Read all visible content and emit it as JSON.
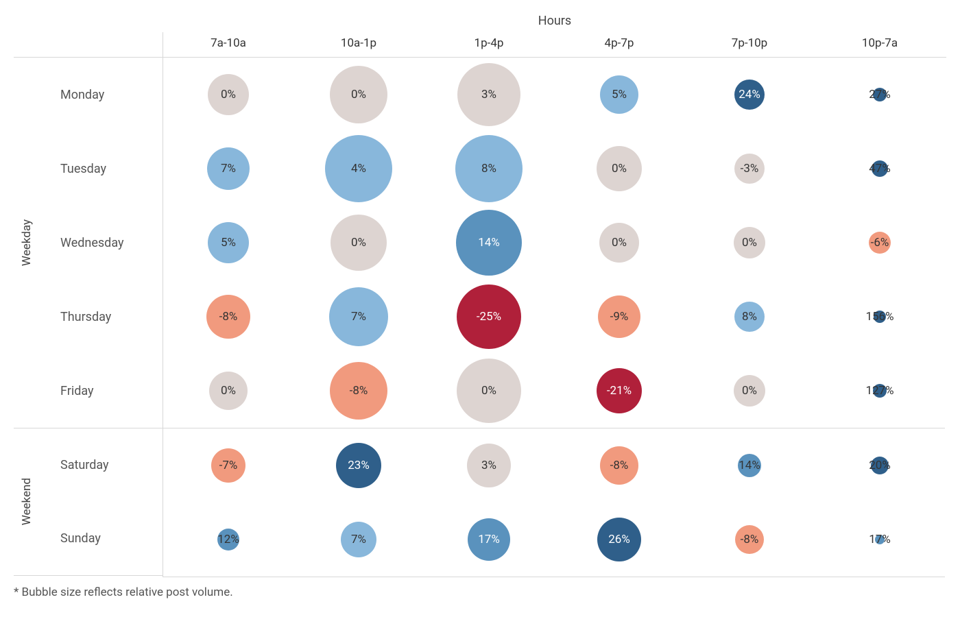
{
  "chart": {
    "type": "bubble-matrix",
    "top_axis_title": "Hours",
    "columns": [
      "7a-10a",
      "10a-1p",
      "1p-4p",
      "4p-7p",
      "7p-10p",
      "10p-7a"
    ],
    "row_groups": [
      {
        "label": "Weekday",
        "rows": [
          "Monday",
          "Tuesday",
          "Wednesday",
          "Thursday",
          "Friday"
        ]
      },
      {
        "label": "Weekend",
        "rows": [
          "Saturday",
          "Sunday"
        ]
      }
    ],
    "colors": {
      "neutral": "#ddd4d1",
      "light_blue": "#88b7db",
      "mid_blue": "#5a92bd",
      "dark_blue": "#2f5f8a",
      "light_red": "#f19a7e",
      "dark_red": "#b0203a",
      "text_dark": "#333333",
      "text_light": "#ffffff",
      "grid_line": "#d7d7d7",
      "background": "#ffffff"
    },
    "cell_size": {
      "width": 190,
      "height": 108
    },
    "label_fontsize": 17,
    "data": {
      "Monday": [
        {
          "value": "0%",
          "size": 60,
          "fill": "neutral",
          "text": "dark"
        },
        {
          "value": "0%",
          "size": 84,
          "fill": "neutral",
          "text": "dark"
        },
        {
          "value": "3%",
          "size": 92,
          "fill": "neutral",
          "text": "dark"
        },
        {
          "value": "5%",
          "size": 56,
          "fill": "light_blue",
          "text": "dark"
        },
        {
          "value": "24%",
          "size": 44,
          "fill": "dark_blue",
          "text": "light"
        },
        {
          "value": "27%",
          "size": 20,
          "fill": "dark_blue",
          "text": "dark",
          "label_outside": true
        }
      ],
      "Tuesday": [
        {
          "value": "7%",
          "size": 62,
          "fill": "light_blue",
          "text": "dark"
        },
        {
          "value": "4%",
          "size": 98,
          "fill": "light_blue",
          "text": "dark"
        },
        {
          "value": "8%",
          "size": 98,
          "fill": "light_blue",
          "text": "dark"
        },
        {
          "value": "0%",
          "size": 66,
          "fill": "neutral",
          "text": "dark"
        },
        {
          "value": "-3%",
          "size": 44,
          "fill": "neutral",
          "text": "dark"
        },
        {
          "value": "47%",
          "size": 24,
          "fill": "dark_blue",
          "text": "dark",
          "label_outside": true
        }
      ],
      "Wednesday": [
        {
          "value": "5%",
          "size": 60,
          "fill": "light_blue",
          "text": "dark"
        },
        {
          "value": "0%",
          "size": 82,
          "fill": "neutral",
          "text": "dark"
        },
        {
          "value": "14%",
          "size": 96,
          "fill": "mid_blue",
          "text": "light"
        },
        {
          "value": "0%",
          "size": 58,
          "fill": "neutral",
          "text": "dark"
        },
        {
          "value": "0%",
          "size": 46,
          "fill": "neutral",
          "text": "dark"
        },
        {
          "value": "-6%",
          "size": 32,
          "fill": "light_red",
          "text": "dark",
          "label_outside": true
        }
      ],
      "Thursday": [
        {
          "value": "-8%",
          "size": 64,
          "fill": "light_red",
          "text": "dark"
        },
        {
          "value": "7%",
          "size": 86,
          "fill": "light_blue",
          "text": "dark"
        },
        {
          "value": "-25%",
          "size": 94,
          "fill": "dark_red",
          "text": "light"
        },
        {
          "value": "-9%",
          "size": 62,
          "fill": "light_red",
          "text": "dark"
        },
        {
          "value": "8%",
          "size": 44,
          "fill": "light_blue",
          "text": "dark"
        },
        {
          "value": "156%",
          "size": 18,
          "fill": "dark_blue",
          "text": "dark",
          "label_outside": true
        }
      ],
      "Friday": [
        {
          "value": "0%",
          "size": 56,
          "fill": "neutral",
          "text": "dark"
        },
        {
          "value": "-8%",
          "size": 84,
          "fill": "light_red",
          "text": "dark"
        },
        {
          "value": "0%",
          "size": 94,
          "fill": "neutral",
          "text": "dark"
        },
        {
          "value": "-21%",
          "size": 66,
          "fill": "dark_red",
          "text": "light"
        },
        {
          "value": "0%",
          "size": 46,
          "fill": "neutral",
          "text": "dark"
        },
        {
          "value": "127%",
          "size": 20,
          "fill": "dark_blue",
          "text": "dark",
          "label_outside": true
        }
      ],
      "Saturday": [
        {
          "value": "-7%",
          "size": 50,
          "fill": "light_red",
          "text": "dark"
        },
        {
          "value": "23%",
          "size": 66,
          "fill": "dark_blue",
          "text": "light"
        },
        {
          "value": "3%",
          "size": 64,
          "fill": "neutral",
          "text": "dark"
        },
        {
          "value": "-8%",
          "size": 56,
          "fill": "light_red",
          "text": "dark"
        },
        {
          "value": "14%",
          "size": 34,
          "fill": "mid_blue",
          "text": "dark",
          "label_outside": true
        },
        {
          "value": "20%",
          "size": 26,
          "fill": "dark_blue",
          "text": "dark",
          "label_outside": true
        }
      ],
      "Sunday": [
        {
          "value": "12%",
          "size": 32,
          "fill": "mid_blue",
          "text": "dark",
          "label_outside": true
        },
        {
          "value": "7%",
          "size": 52,
          "fill": "light_blue",
          "text": "dark"
        },
        {
          "value": "17%",
          "size": 62,
          "fill": "mid_blue",
          "text": "light"
        },
        {
          "value": "26%",
          "size": 64,
          "fill": "dark_blue",
          "text": "light"
        },
        {
          "value": "-8%",
          "size": 42,
          "fill": "light_red",
          "text": "dark"
        },
        {
          "value": "17%",
          "size": 14,
          "fill": "mid_blue",
          "text": "dark",
          "label_outside": true
        }
      ]
    },
    "footnote": "* Bubble size reflects relative post volume."
  }
}
